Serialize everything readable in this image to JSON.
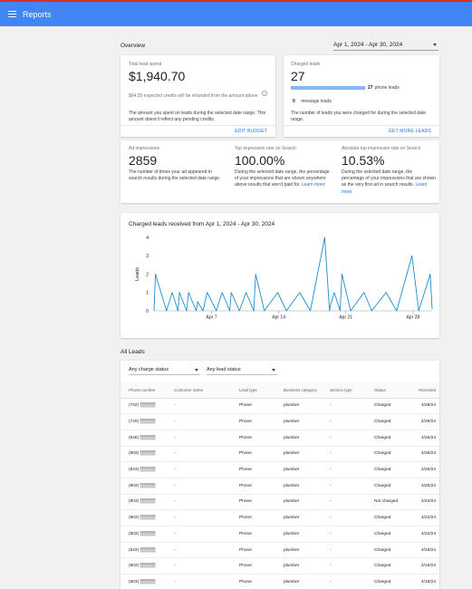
{
  "app": {
    "title": "Reports"
  },
  "overview": {
    "title": "Overview",
    "date_range": "Apr 1, 2024 - Apr 30, 2024",
    "total_lead_spend": {
      "label": "Total lead spend",
      "value": "$1,940.70",
      "note": "$64.55 expected credits will be refunded from the amount above",
      "description": "The amount you spent on leads during the selected date range. This amount doesn't reflect any pending credits.",
      "action": "EDIT BUDGET"
    },
    "charged_leads": {
      "label": "Charged leads",
      "value": "27",
      "phone_count": "27",
      "phone_label": "phone leads",
      "message_count": "0",
      "message_label": "message leads",
      "phone_fraction": 1.0,
      "description": "The number of leads you were charged for during the selected date range.",
      "action": "GET MORE LEADS"
    },
    "ad_impressions": {
      "label": "Ad impressions",
      "value": "2859",
      "description": "The number of times your ad appeared in search results during the selected date range."
    },
    "top_impression_rate": {
      "label": "Top impression rate on Search",
      "value": "100.00%",
      "description": "During the selected date range, the percentage of your impressions that are shown anywhere above results that aren't paid for.",
      "link": "Learn more"
    },
    "abs_top_impression_rate": {
      "label": "Absolute top impression rate on Search",
      "value": "10.53%",
      "description": "During the selected date range, the percentage of your impressions that are shown as the very first ad in search results.",
      "link": "Learn more"
    }
  },
  "chart_data": {
    "type": "line",
    "title": "Charged leads received from Apr 1, 2024 - Apr 30, 2024",
    "ylabel": "Leads",
    "ylim": [
      0,
      4
    ],
    "yticks": [
      "0",
      "1",
      "2",
      "3",
      "4"
    ],
    "x_tick_labels": [
      {
        "label": "Apr 7",
        "day": 7
      },
      {
        "label": "Apr 14",
        "day": 14
      },
      {
        "label": "Apr 21",
        "day": 21
      },
      {
        "label": "Apr 28",
        "day": 28
      }
    ],
    "x_range": [
      1,
      30
    ],
    "series": [
      {
        "color": "#1a8ec9",
        "points": [
          [
            1,
            0
          ],
          [
            1.15,
            2
          ],
          [
            2.3,
            0
          ],
          [
            2.9,
            1
          ],
          [
            3.5,
            0
          ],
          [
            3.65,
            1
          ],
          [
            4.4,
            0
          ],
          [
            4.6,
            1
          ],
          [
            5.4,
            0
          ],
          [
            5.55,
            0.5
          ],
          [
            6.1,
            0
          ],
          [
            6.55,
            1
          ],
          [
            7.5,
            0
          ],
          [
            8.1,
            1
          ],
          [
            8.9,
            0
          ],
          [
            9.05,
            1
          ],
          [
            9.9,
            0
          ],
          [
            10.6,
            1
          ],
          [
            11.4,
            0
          ],
          [
            11.6,
            2
          ],
          [
            12.5,
            0
          ],
          [
            13.9,
            1
          ],
          [
            14.8,
            0
          ],
          [
            16.2,
            1
          ],
          [
            17.3,
            0
          ],
          [
            18.8,
            4
          ],
          [
            19.3,
            0
          ],
          [
            19.4,
            0.3
          ],
          [
            19.8,
            1
          ],
          [
            20.4,
            0
          ],
          [
            20.6,
            2
          ],
          [
            21.5,
            0
          ],
          [
            22.9,
            1
          ],
          [
            23.7,
            0
          ],
          [
            25.2,
            1
          ],
          [
            26.3,
            0
          ],
          [
            27.9,
            3
          ],
          [
            28.6,
            0
          ],
          [
            29.8,
            2
          ],
          [
            30,
            0.1
          ]
        ]
      }
    ]
  },
  "all_leads": {
    "title": "All Leads",
    "charge_filter": "Any charge status",
    "lead_filter": "Any lead status",
    "columns": [
      "Phone number",
      "Customer name",
      "Lead type",
      "Business category",
      "Service type",
      "Status",
      "Received"
    ],
    "rows": [
      {
        "phone": "(732) ▒▒▒▒▒",
        "name": "-",
        "type": "Phone",
        "category": "plumber",
        "service": "-",
        "status": "Charged",
        "received": "4/29/24"
      },
      {
        "phone": "(720) ▒▒▒▒▒",
        "name": "-",
        "type": "Phone",
        "category": "plumber",
        "service": "-",
        "status": "Charged",
        "received": "4/29/24"
      },
      {
        "phone": "(646) ▒▒▒▒▒",
        "name": "-",
        "type": "Phone",
        "category": "plumber",
        "service": "-",
        "status": "Charged",
        "received": "4/26/24"
      },
      {
        "phone": "(803) ▒▒▒▒▒",
        "name": "-",
        "type": "Phone",
        "category": "plumber",
        "service": "-",
        "status": "Charged",
        "received": "4/26/24"
      },
      {
        "phone": "(843) ▒▒▒▒▒",
        "name": "-",
        "type": "Phone",
        "category": "plumber",
        "service": "-",
        "status": "Charged",
        "received": "4/26/24"
      },
      {
        "phone": "(803) ▒▒▒▒▒",
        "name": "-",
        "type": "Phone",
        "category": "plumber",
        "service": "-",
        "status": "Charged",
        "received": "4/25/24"
      },
      {
        "phone": "(803) ▒▒▒▒▒",
        "name": "-",
        "type": "Phone",
        "category": "plumber",
        "service": "-",
        "status": "Not charged",
        "received": "4/23/24"
      },
      {
        "phone": "(803) ▒▒▒▒▒",
        "name": "-",
        "type": "Phone",
        "category": "plumber",
        "service": "-",
        "status": "Charged",
        "received": "4/22/24"
      },
      {
        "phone": "(803) ▒▒▒▒▒",
        "name": "-",
        "type": "Phone",
        "category": "plumber",
        "service": "-",
        "status": "Charged",
        "received": "4/22/24"
      },
      {
        "phone": "(843) ▒▒▒▒▒",
        "name": "-",
        "type": "Phone",
        "category": "plumber",
        "service": "-",
        "status": "Charged",
        "received": "4/19/24"
      },
      {
        "phone": "(803) ▒▒▒▒▒",
        "name": "-",
        "type": "Phone",
        "category": "plumber",
        "service": "-",
        "status": "Charged",
        "received": "4/19/24"
      },
      {
        "phone": "(803) ▒▒▒▒▒",
        "name": "-",
        "type": "Phone",
        "category": "plumber",
        "service": "-",
        "status": "Charged",
        "received": "4/19/24"
      },
      {
        "phone": "(809) ▒▒▒▒▒",
        "name": "-",
        "type": "Phone",
        "category": "plumber",
        "service": "-",
        "status": "Charged",
        "received": "4/18/24"
      }
    ]
  },
  "colors": {
    "header": "#4285f4",
    "accent": "#1a73e8",
    "chart_line": "#1a8ec9",
    "bar": "#8ab4f8"
  }
}
